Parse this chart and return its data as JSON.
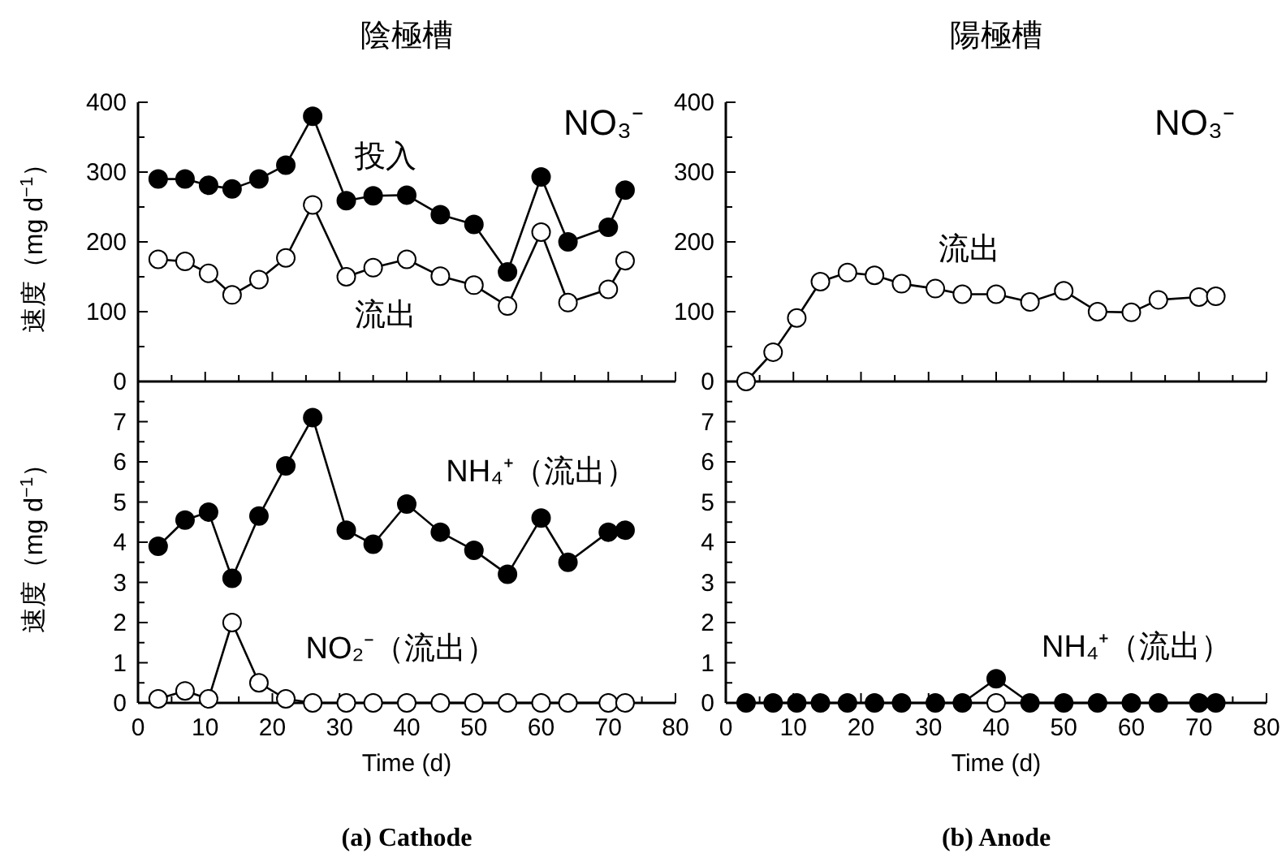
{
  "chart_data": [
    {
      "type": "line",
      "title": "陰極槽",
      "ylabel": "速度（mg d$^{−1}$）",
      "tick_labels": "y",
      "marker": "circle",
      "xlim": [
        0,
        80
      ],
      "ylim": [
        0,
        400
      ],
      "xticks": [
        0,
        {
          "value": 5,
          "label": null
        },
        10,
        {
          "value": 15,
          "label": null
        },
        20,
        {
          "value": 25,
          "label": null
        },
        30,
        {
          "value": 35,
          "label": null
        },
        40,
        {
          "value": 45,
          "label": null
        },
        50,
        {
          "value": 55,
          "label": null
        },
        60,
        {
          "value": 65,
          "label": null
        },
        70,
        {
          "value": 75,
          "label": null
        },
        80
      ],
      "yticks": [
        0,
        {
          "value": 50,
          "label": null
        },
        100,
        {
          "value": 150,
          "label": null
        },
        200,
        {
          "value": 250,
          "label": null
        },
        300,
        {
          "value": 350,
          "label": null
        },
        400
      ],
      "x": [
        3,
        7,
        10.5,
        14,
        18,
        22,
        26,
        31,
        35,
        40,
        45,
        50,
        55,
        60,
        64,
        70,
        72.5
      ],
      "series": [
        {
          "name": "投入",
          "color": "#000000",
          "values": [
            290,
            290,
            281,
            276,
            290,
            310,
            380,
            259,
            266,
            267,
            239,
            225,
            157,
            293,
            200,
            221,
            274
          ]
        },
        {
          "name": "流出",
          "color": "#ffffff",
          "values": [
            175,
            172,
            155,
            124,
            146,
            177,
            253,
            150,
            163,
            175,
            151,
            138,
            108,
            214,
            113,
            132,
            173
          ]
        }
      ],
      "annotations": [
        "NO₃⁻"
      ]
    },
    {
      "type": "line",
      "title": "陽極槽",
      "tick_labels": "y",
      "marker": "circle",
      "xlim": [
        0,
        80
      ],
      "ylim": [
        0,
        400
      ],
      "xticks": [
        0,
        {
          "value": 5,
          "label": null
        },
        10,
        {
          "value": 15,
          "label": null
        },
        20,
        {
          "value": 25,
          "label": null
        },
        30,
        {
          "value": 35,
          "label": null
        },
        40,
        {
          "value": 45,
          "label": null
        },
        50,
        {
          "value": 55,
          "label": null
        },
        60,
        {
          "value": 65,
          "label": null
        },
        70,
        {
          "value": 75,
          "label": null
        },
        80
      ],
      "yticks": [
        0,
        {
          "value": 50,
          "label": null
        },
        100,
        {
          "value": 150,
          "label": null
        },
        200,
        {
          "value": 250,
          "label": null
        },
        300,
        {
          "value": 350,
          "label": null
        },
        400
      ],
      "x": [
        3,
        7,
        10.5,
        14,
        18,
        22,
        26,
        31,
        35,
        40,
        45,
        50,
        55,
        60,
        64,
        70,
        72.5
      ],
      "series": [
        {
          "name": "流出",
          "color": "#ffffff",
          "values": [
            0,
            42,
            91,
            143,
            156,
            152,
            140,
            133,
            125,
            125,
            114,
            130,
            100,
            99,
            117,
            121,
            122
          ]
        }
      ],
      "annotations": [
        "NO₃⁻"
      ]
    },
    {
      "type": "line",
      "xlabel": "Time (d)",
      "ylabel": "速度（mg d$^{−1}$）",
      "marker": "circle",
      "xlim": [
        0,
        80
      ],
      "ylim": [
        0,
        8
      ],
      "xticks": [
        0,
        {
          "value": 5,
          "label": null
        },
        10,
        {
          "value": 15,
          "label": null
        },
        20,
        {
          "value": 25,
          "label": null
        },
        30,
        {
          "value": 35,
          "label": null
        },
        40,
        {
          "value": 45,
          "label": null
        },
        50,
        {
          "value": 55,
          "label": null
        },
        60,
        {
          "value": 65,
          "label": null
        },
        70,
        {
          "value": 75,
          "label": null
        },
        80
      ],
      "yticks": [
        0,
        {
          "value": 0.5,
          "label": null
        },
        1,
        {
          "value": 1.5,
          "label": null
        },
        2,
        {
          "value": 2.5,
          "label": null
        },
        3,
        {
          "value": 3.5,
          "label": null
        },
        4,
        {
          "value": 4.5,
          "label": null
        },
        5,
        {
          "value": 5.5,
          "label": null
        },
        6,
        {
          "value": 6.5,
          "label": null
        },
        7,
        {
          "value": 7.5,
          "label": null
        }
      ],
      "x": [
        3,
        7,
        10.5,
        14,
        18,
        22,
        26,
        31,
        35,
        40,
        45,
        50,
        55,
        60,
        64,
        70,
        72.5
      ],
      "series": [
        {
          "name": "NH₄⁺（流出）",
          "color": "#000000",
          "values": [
            3.9,
            4.55,
            4.75,
            3.1,
            4.65,
            5.9,
            7.1,
            4.3,
            3.95,
            4.95,
            4.25,
            3.8,
            3.2,
            4.6,
            3.5,
            4.25,
            4.3
          ]
        },
        {
          "name": "NO₂⁻（流出）",
          "color": "#ffffff",
          "values": [
            0.1,
            0.3,
            0.1,
            2.0,
            0.5,
            0.1,
            0,
            0,
            0,
            0,
            0,
            0,
            0,
            0,
            0,
            0,
            0
          ]
        }
      ],
      "annotations": [
        "(a) Cathode"
      ]
    },
    {
      "type": "line",
      "xlabel": "Time (d)",
      "marker": "circle",
      "xlim": [
        0,
        80
      ],
      "ylim": [
        0,
        8
      ],
      "xticks": [
        0,
        {
          "value": 5,
          "label": null
        },
        10,
        {
          "value": 15,
          "label": null
        },
        20,
        {
          "value": 25,
          "label": null
        },
        30,
        {
          "value": 35,
          "label": null
        },
        40,
        {
          "value": 45,
          "label": null
        },
        50,
        {
          "value": 55,
          "label": null
        },
        60,
        {
          "value": 65,
          "label": null
        },
        70,
        {
          "value": 75,
          "label": null
        },
        80
      ],
      "yticks": [
        0,
        {
          "value": 0.5,
          "label": null
        },
        1,
        {
          "value": 1.5,
          "label": null
        },
        2,
        {
          "value": 2.5,
          "label": null
        },
        3,
        {
          "value": 3.5,
          "label": null
        },
        4,
        {
          "value": 4.5,
          "label": null
        },
        5,
        {
          "value": 5.5,
          "label": null
        },
        6,
        {
          "value": 6.5,
          "label": null
        },
        7,
        {
          "value": 7.5,
          "label": null
        }
      ],
      "x": [
        3,
        7,
        10.5,
        14,
        18,
        22,
        26,
        31,
        35,
        40,
        45,
        50,
        55,
        60,
        64,
        70,
        72.5
      ],
      "series": [
        {
          "type": "scatter",
          "color": "#ffffff",
          "x": [
            40
          ],
          "values": [
            0
          ]
        },
        {
          "name": "NH₄⁺（流出）",
          "color": "#000000",
          "values": [
            0,
            0,
            0,
            0,
            0,
            0,
            0,
            0,
            0,
            0.6,
            0,
            0,
            0,
            0,
            0,
            0,
            0
          ]
        }
      ],
      "annotations": [
        "(b) Anode"
      ]
    }
  ]
}
